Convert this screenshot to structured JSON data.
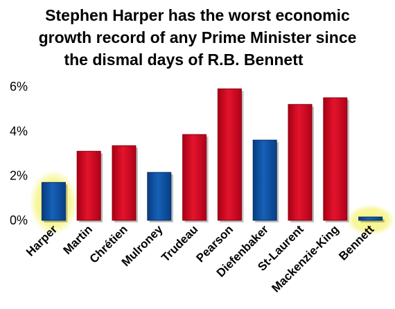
{
  "chart_data": {
    "type": "bar",
    "title_lines": [
      "Stephen Harper has the worst economic",
      "growth record of any Prime Minister since",
      "the dismal days of R.B. Bennett"
    ],
    "categories": [
      "Harper",
      "Martin",
      "Chrétien",
      "Mulroney",
      "Trudeau",
      "Pearson",
      "Diefenbaker",
      "St-Laurent",
      "Mackenzie-King",
      "Bennett"
    ],
    "values": [
      1.7,
      3.1,
      3.35,
      2.15,
      3.85,
      5.9,
      3.6,
      5.2,
      5.5,
      0.15
    ],
    "bar_party": [
      "conservative",
      "liberal",
      "liberal",
      "conservative",
      "liberal",
      "liberal",
      "conservative",
      "liberal",
      "liberal",
      "conservative"
    ],
    "highlighted": [
      "Harper",
      "Bennett"
    ],
    "ylim": [
      0,
      6
    ],
    "yticks": [
      0,
      2,
      4,
      6
    ],
    "ytick_labels": [
      "0%",
      "2%",
      "4%",
      "6%"
    ],
    "colors": {
      "liberal": "#d0021b",
      "conservative": "#0b4fa0",
      "highlight": "#f6f58a"
    },
    "grid": false,
    "legend": "none"
  }
}
